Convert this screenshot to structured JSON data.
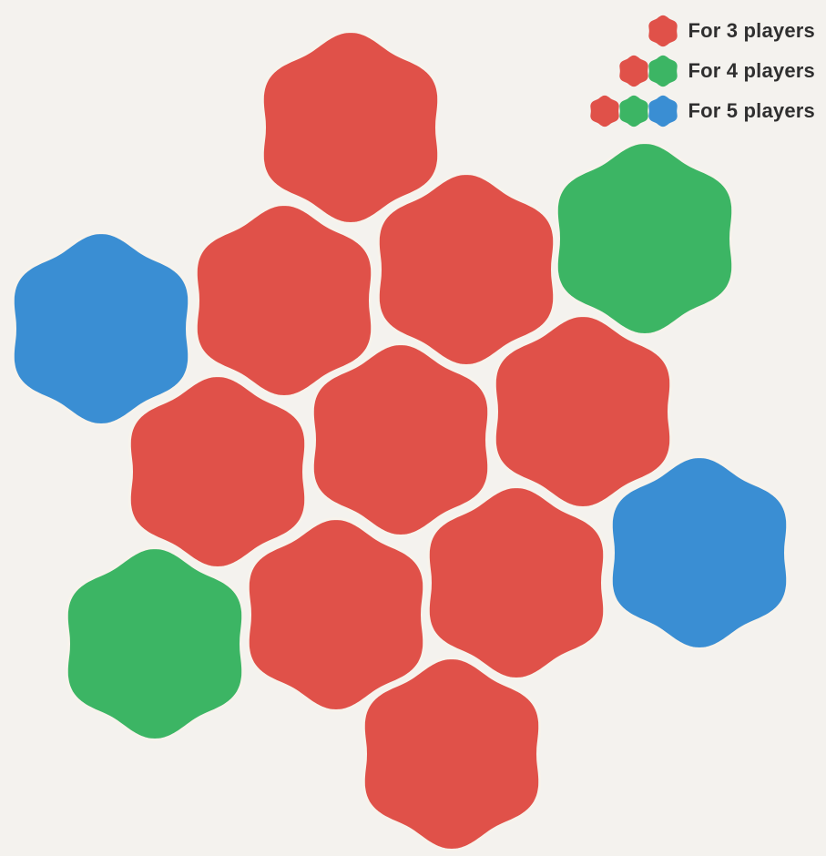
{
  "colors": {
    "red": "#e05149",
    "green": "#3cb564",
    "blue": "#3a8ed3",
    "background": "#f4f2ee",
    "text": "#2f2f2f"
  },
  "legend": [
    {
      "label": "For 3 players",
      "icons": [
        "red"
      ]
    },
    {
      "label": "For 4 players",
      "icons": [
        "red",
        "green"
      ]
    },
    {
      "label": "For 5 players",
      "icons": [
        "red",
        "green",
        "blue"
      ]
    }
  ],
  "tiles": [
    {
      "name": "tile-red-top",
      "color": "red"
    },
    {
      "name": "tile-red-upper-left",
      "color": "red"
    },
    {
      "name": "tile-red-upper-right",
      "color": "red"
    },
    {
      "name": "tile-red-middle-left",
      "color": "red"
    },
    {
      "name": "tile-red-center",
      "color": "red"
    },
    {
      "name": "tile-red-middle-right",
      "color": "red"
    },
    {
      "name": "tile-red-lower-left",
      "color": "red"
    },
    {
      "name": "tile-red-lower-right",
      "color": "red"
    },
    {
      "name": "tile-red-bottom",
      "color": "red"
    },
    {
      "name": "tile-green-upper-right",
      "color": "green"
    },
    {
      "name": "tile-green-lower-left",
      "color": "green"
    },
    {
      "name": "tile-blue-upper-left",
      "color": "blue"
    },
    {
      "name": "tile-blue-lower-right",
      "color": "blue"
    }
  ]
}
